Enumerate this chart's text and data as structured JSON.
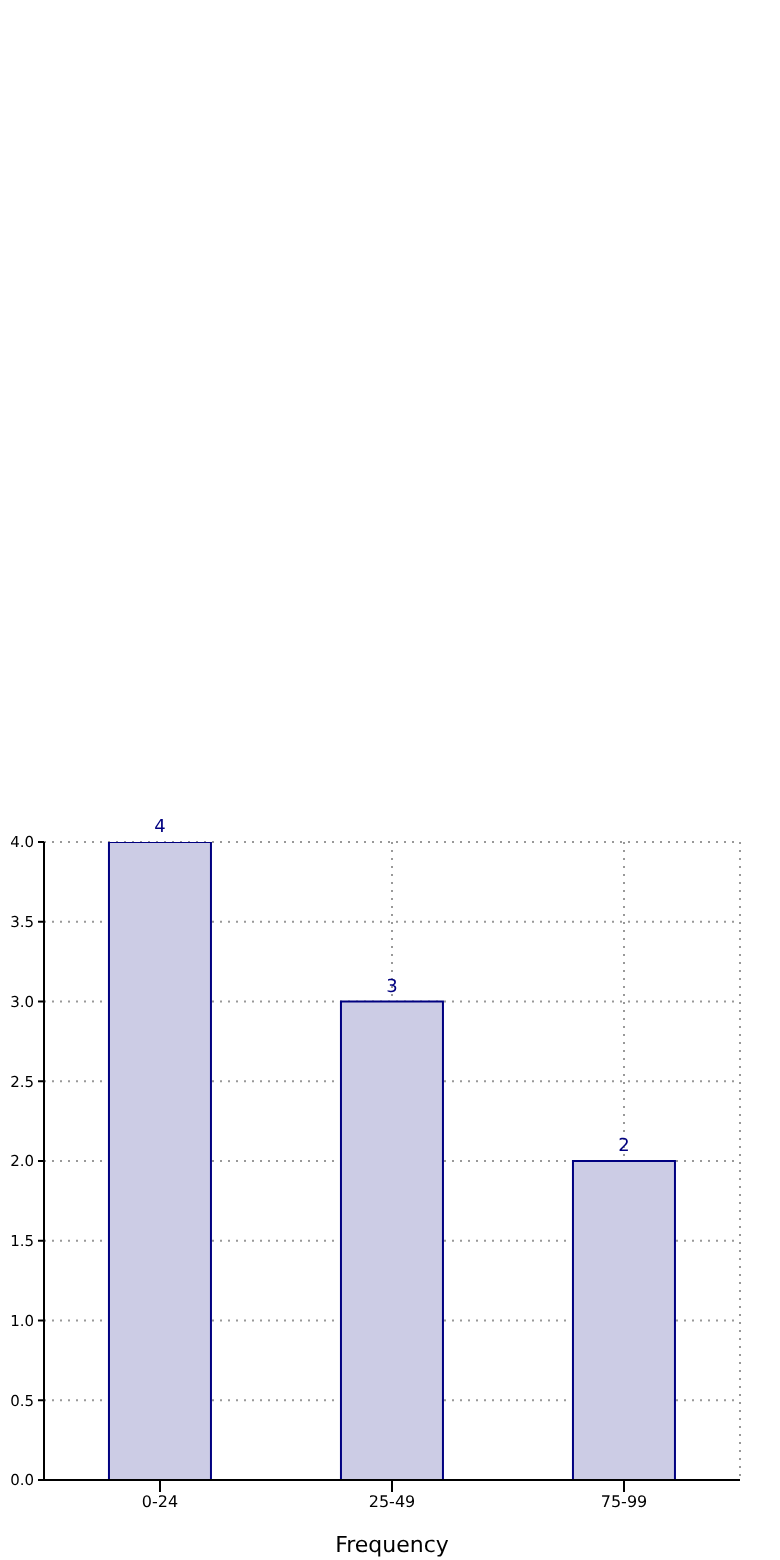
{
  "chart_data": {
    "type": "bar",
    "xlabel": "Frequency",
    "categories": [
      "0-24",
      "25-49",
      "75-99"
    ],
    "values": [
      4,
      3,
      2
    ],
    "color": "#cccce5",
    "ylim": [
      0,
      4
    ],
    "yticks": [
      {
        "value": 0,
        "label": "0.0"
      },
      {
        "value": 0.5,
        "label": "0.5"
      },
      {
        "value": 1,
        "label": "1.0"
      },
      {
        "value": 1.5,
        "label": "1.5"
      },
      {
        "value": 2,
        "label": "2.0"
      },
      {
        "value": 2.5,
        "label": "2.5"
      },
      {
        "value": 3,
        "label": "3.0"
      },
      {
        "value": 3.5,
        "label": "3.5"
      },
      {
        "value": 4,
        "label": "4.0"
      }
    ],
    "grid": true,
    "data_labels": true
  }
}
